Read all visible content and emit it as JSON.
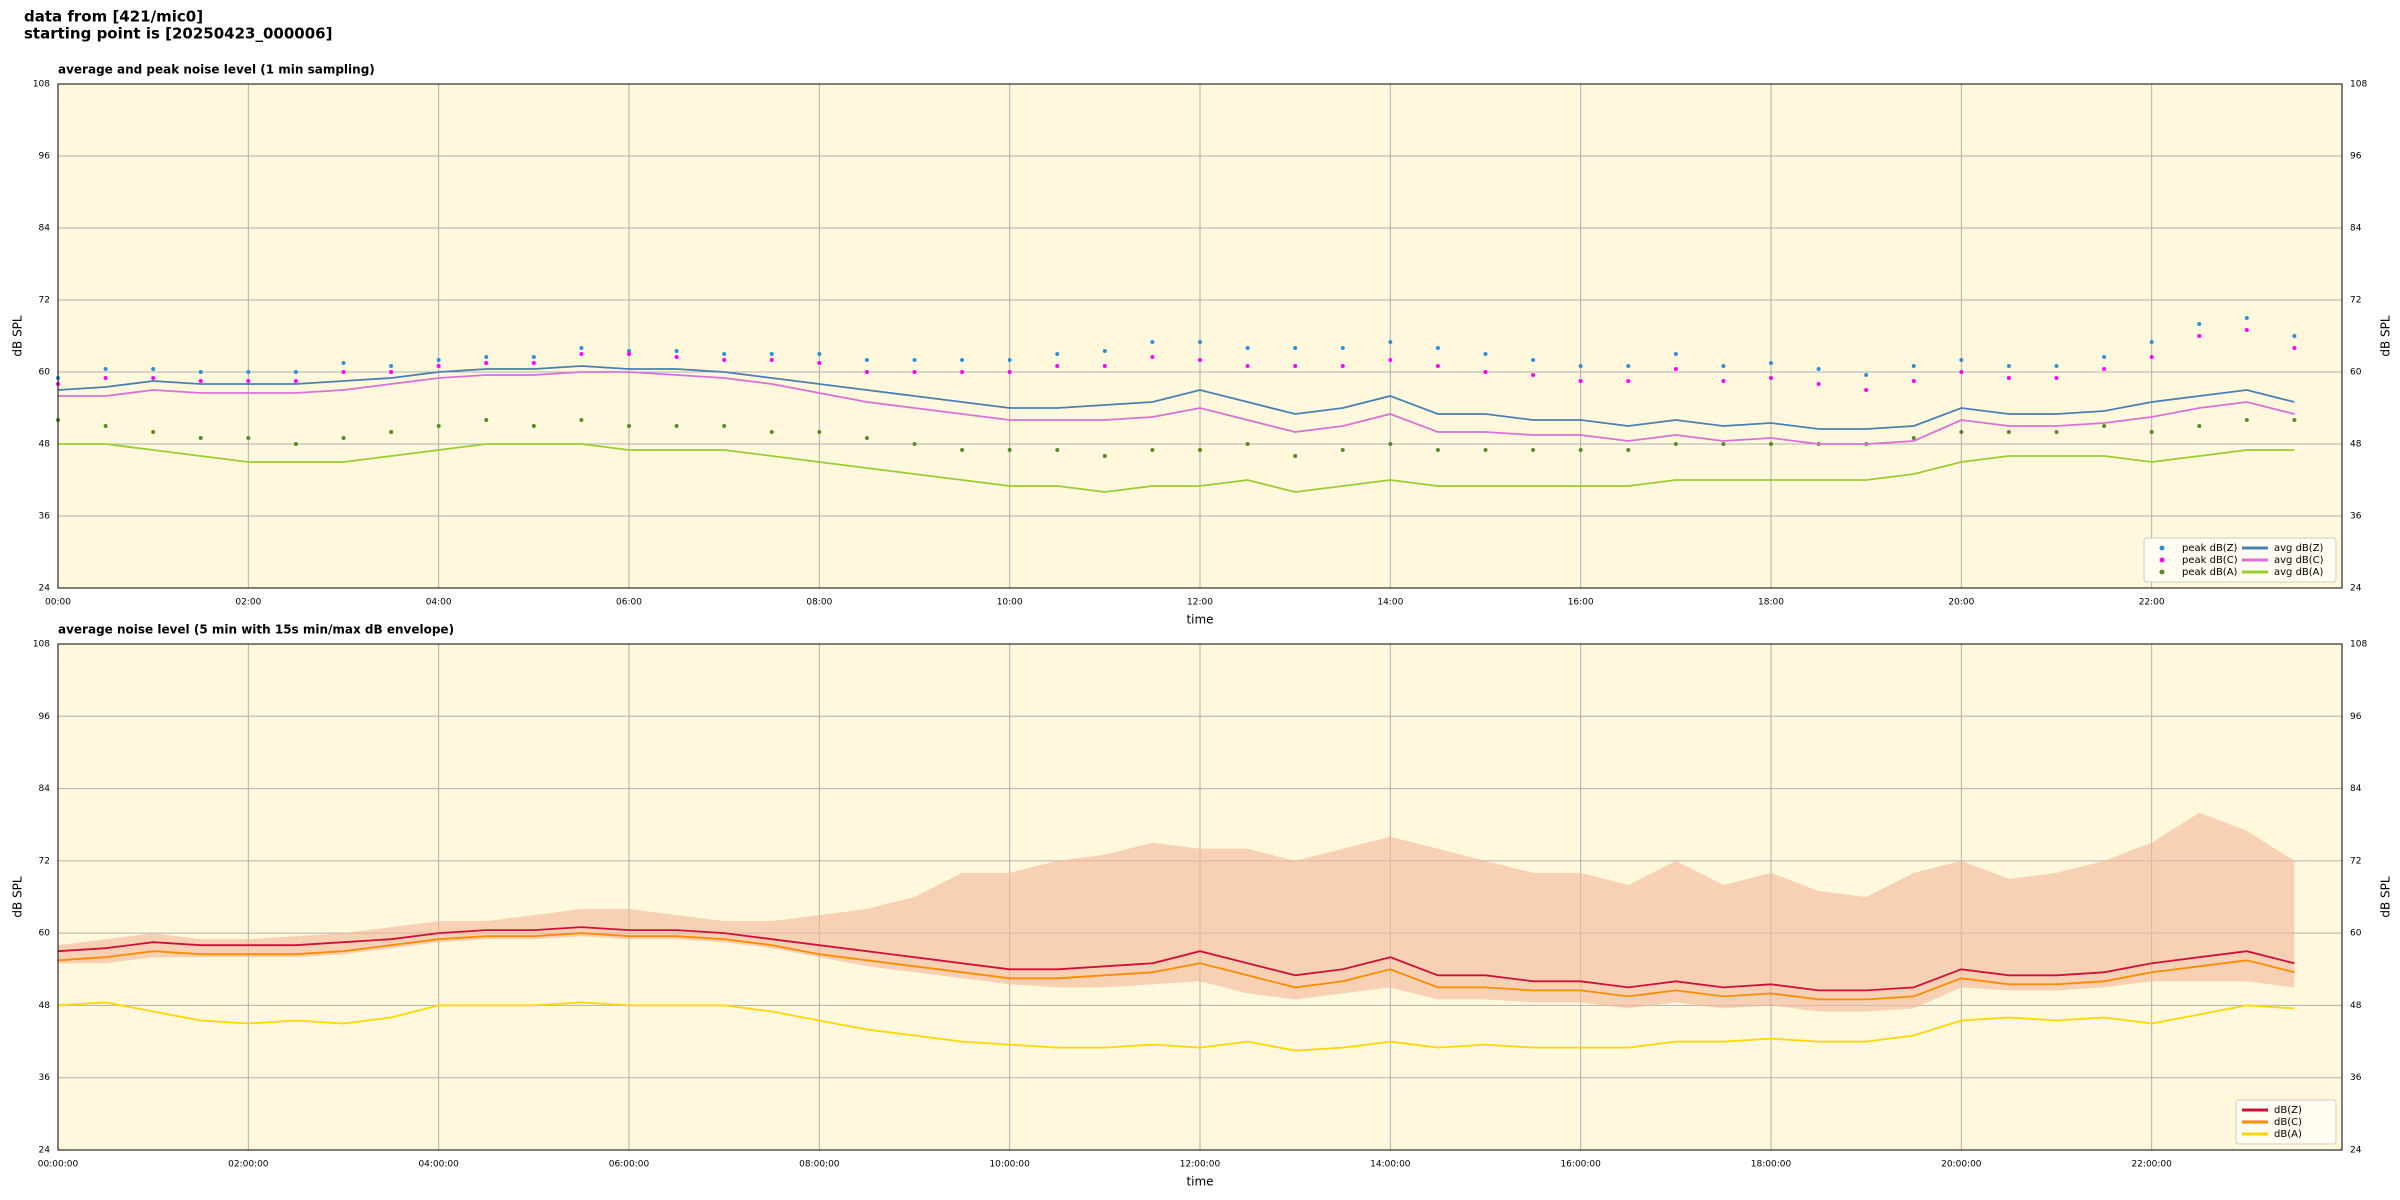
{
  "header": {
    "lines": [
      "data from [421/mic0]",
      "starting point is [20250423_000006]"
    ]
  },
  "chart_data": [
    {
      "type": "line",
      "title": "average and peak noise level (1 min sampling)",
      "xlabel": "time",
      "ylabel": "dB SPL",
      "background": "#fff8dc",
      "grid": true,
      "legend": "lower right",
      "legend_columns": 2,
      "x": [
        0,
        30,
        60,
        90,
        120,
        150,
        180,
        210,
        240,
        270,
        300,
        330,
        360,
        390,
        420,
        450,
        480,
        510,
        540,
        570,
        600,
        630,
        660,
        690,
        720,
        750,
        780,
        810,
        840,
        870,
        900,
        930,
        960,
        990,
        1020,
        1050,
        1080,
        1110,
        1140,
        1170,
        1200,
        1230,
        1260,
        1290,
        1320,
        1350,
        1380,
        1410
      ],
      "xlim": [
        0,
        1440
      ],
      "xticks": [
        {
          "value": 0,
          "label": "00:00"
        },
        {
          "value": 120,
          "label": "02:00"
        },
        {
          "value": 240,
          "label": "04:00"
        },
        {
          "value": 360,
          "label": "06:00"
        },
        {
          "value": 480,
          "label": "08:00"
        },
        {
          "value": 600,
          "label": "10:00"
        },
        {
          "value": 720,
          "label": "12:00"
        },
        {
          "value": 840,
          "label": "14:00"
        },
        {
          "value": 960,
          "label": "16:00"
        },
        {
          "value": 1080,
          "label": "18:00"
        },
        {
          "value": 1200,
          "label": "20:00"
        },
        {
          "value": 1320,
          "label": "22:00"
        }
      ],
      "ylim": [
        24,
        108
      ],
      "yticks": [
        24,
        36,
        48,
        60,
        72,
        84,
        96,
        108
      ],
      "series": [
        {
          "name": "peak dB(Z)",
          "style": "markers",
          "color": "#2f8fd8",
          "values": [
            59,
            60.5,
            60.5,
            60,
            60,
            60,
            61.5,
            61,
            62,
            62.5,
            62.5,
            64,
            63.5,
            63.5,
            63,
            63,
            63,
            62,
            62,
            62,
            62,
            63,
            63.5,
            65,
            65,
            64,
            64,
            64,
            65,
            64,
            63,
            62,
            61,
            61,
            63,
            61,
            61.5,
            60.5,
            59.5,
            61,
            62,
            61,
            61,
            62.5,
            65,
            68,
            69,
            66
          ]
        },
        {
          "name": "peak dB(C)",
          "style": "markers",
          "color": "#ff00ff",
          "values": [
            58,
            59,
            59,
            58.5,
            58.5,
            58.5,
            60,
            60,
            61,
            61.5,
            61.5,
            63,
            63,
            62.5,
            62,
            62,
            61.5,
            60,
            60,
            60,
            60,
            61,
            61,
            62.5,
            62,
            61,
            61,
            61,
            62,
            61,
            60,
            59.5,
            58.5,
            58.5,
            60.5,
            58.5,
            59,
            58,
            57,
            58.5,
            60,
            59,
            59,
            60.5,
            62.5,
            66,
            67,
            64
          ]
        },
        {
          "name": "peak dB(A)",
          "style": "markers",
          "color": "#5a8a28",
          "values": [
            52,
            51,
            50,
            49,
            49,
            48,
            49,
            50,
            51,
            52,
            51,
            52,
            51,
            51,
            51,
            50,
            50,
            49,
            48,
            47,
            47,
            47,
            46,
            47,
            47,
            48,
            46,
            47,
            48,
            47,
            47,
            47,
            47,
            47,
            48,
            48,
            48,
            48,
            48,
            49,
            50,
            50,
            50,
            51,
            50,
            51,
            52,
            52
          ]
        },
        {
          "name": "avg dB(Z)",
          "style": "line",
          "color": "#4a7fb5",
          "values": [
            57,
            57.5,
            58.5,
            58,
            58,
            58,
            58.5,
            59,
            60,
            60.5,
            60.5,
            61,
            60.5,
            60.5,
            60,
            59,
            58,
            57,
            56,
            55,
            54,
            54,
            54.5,
            55,
            57,
            55,
            53,
            54,
            56,
            53,
            53,
            52,
            52,
            51,
            52,
            51,
            51.5,
            50.5,
            50.5,
            51,
            54,
            53,
            53,
            53.5,
            55,
            56,
            57,
            55
          ]
        },
        {
          "name": "avg dB(C)",
          "style": "line",
          "color": "#da70d6",
          "values": [
            56,
            56,
            57,
            56.5,
            56.5,
            56.5,
            57,
            58,
            59,
            59.5,
            59.5,
            60,
            60,
            59.5,
            59,
            58,
            56.5,
            55,
            54,
            53,
            52,
            52,
            52,
            52.5,
            54,
            52,
            50,
            51,
            53,
            50,
            50,
            49.5,
            49.5,
            48.5,
            49.5,
            48.5,
            49,
            48,
            48,
            48.5,
            52,
            51,
            51,
            51.5,
            52.5,
            54,
            55,
            53
          ]
        },
        {
          "name": "avg dB(A)",
          "style": "line",
          "color": "#9acd32",
          "values": [
            48,
            48,
            47,
            46,
            45,
            45,
            45,
            46,
            47,
            48,
            48,
            48,
            47,
            47,
            47,
            46,
            45,
            44,
            43,
            42,
            41,
            41,
            40,
            41,
            41,
            42,
            40,
            41,
            42,
            41,
            41,
            41,
            41,
            41,
            42,
            42,
            42,
            42,
            42,
            43,
            45,
            46,
            46,
            46,
            45,
            46,
            47,
            47
          ]
        }
      ]
    },
    {
      "type": "line",
      "title": "average noise level (5 min with 15s min/max dB envelope)",
      "xlabel": "time",
      "ylabel": "dB SPL",
      "background": "#fff8dc",
      "grid": true,
      "legend": "lower right",
      "legend_columns": 1,
      "x": [
        0,
        30,
        60,
        90,
        120,
        150,
        180,
        210,
        240,
        270,
        300,
        330,
        360,
        390,
        420,
        450,
        480,
        510,
        540,
        570,
        600,
        630,
        660,
        690,
        720,
        750,
        780,
        810,
        840,
        870,
        900,
        930,
        960,
        990,
        1020,
        1050,
        1080,
        1110,
        1140,
        1170,
        1200,
        1230,
        1260,
        1290,
        1320,
        1350,
        1380,
        1410
      ],
      "xlim": [
        0,
        1440
      ],
      "xticks": [
        {
          "value": 0,
          "label": "00:00:00"
        },
        {
          "value": 120,
          "label": "02:00:00"
        },
        {
          "value": 240,
          "label": "04:00:00"
        },
        {
          "value": 360,
          "label": "06:00:00"
        },
        {
          "value": 480,
          "label": "08:00:00"
        },
        {
          "value": 600,
          "label": "10:00:00"
        },
        {
          "value": 720,
          "label": "12:00:00"
        },
        {
          "value": 840,
          "label": "14:00:00"
        },
        {
          "value": 960,
          "label": "16:00:00"
        },
        {
          "value": 1080,
          "label": "18:00:00"
        },
        {
          "value": 1200,
          "label": "20:00:00"
        },
        {
          "value": 1320,
          "label": "22:00:00"
        }
      ],
      "ylim": [
        24,
        108
      ],
      "yticks": [
        24,
        36,
        48,
        60,
        72,
        84,
        96,
        108
      ],
      "envelope": {
        "color": "#f4b79a",
        "max": [
          58,
          59,
          60,
          59,
          59,
          59.5,
          60,
          61,
          62,
          62,
          63,
          64,
          64,
          63,
          62,
          62,
          63,
          64,
          66,
          70,
          70,
          72,
          73,
          75,
          74,
          74,
          72,
          74,
          76,
          74,
          72,
          70,
          70,
          68,
          72,
          68,
          70,
          67,
          66,
          70,
          72,
          69,
          70,
          72,
          75,
          80,
          77,
          72
        ],
        "min": [
          55,
          55,
          56,
          56,
          56,
          56,
          56.5,
          57.5,
          58.5,
          59,
          59,
          59.5,
          59,
          59,
          58.5,
          57.5,
          56,
          54.5,
          53.5,
          52.5,
          51.5,
          51,
          51,
          51.5,
          52,
          50,
          49,
          50,
          51,
          49,
          49,
          48.5,
          48.5,
          47.5,
          48.5,
          47.5,
          48,
          47,
          47,
          47.5,
          51,
          50.5,
          50.5,
          51,
          52,
          52,
          52,
          51
        ]
      },
      "series": [
        {
          "name": "dB(Z)",
          "style": "line",
          "color": "#d0103a",
          "values": [
            57,
            57.5,
            58.5,
            58,
            58,
            58,
            58.5,
            59,
            60,
            60.5,
            60.5,
            61,
            60.5,
            60.5,
            60,
            59,
            58,
            57,
            56,
            55,
            54,
            54,
            54.5,
            55,
            57,
            55,
            53,
            54,
            56,
            53,
            53,
            52,
            52,
            51,
            52,
            51,
            51.5,
            50.5,
            50.5,
            51,
            54,
            53,
            53,
            53.5,
            55,
            56,
            57,
            55
          ]
        },
        {
          "name": "dB(C)",
          "style": "line",
          "color": "#ff8c00",
          "values": [
            55.5,
            56,
            57,
            56.5,
            56.5,
            56.5,
            57,
            58,
            59,
            59.5,
            59.5,
            60,
            59.5,
            59.5,
            59,
            58,
            56.5,
            55.5,
            54.5,
            53.5,
            52.5,
            52.5,
            53,
            53.5,
            55,
            53,
            51,
            52,
            54,
            51,
            51,
            50.5,
            50.5,
            49.5,
            50.5,
            49.5,
            50,
            49,
            49,
            49.5,
            52.5,
            51.5,
            51.5,
            52,
            53.5,
            54.5,
            55.5,
            53.5
          ]
        },
        {
          "name": "dB(A)",
          "style": "line",
          "color": "#ffd700",
          "values": [
            48,
            48.5,
            47,
            45.5,
            45,
            45.5,
            45,
            46,
            48,
            48,
            48,
            48.5,
            48,
            48,
            48,
            47,
            45.5,
            44,
            43,
            42,
            41.5,
            41,
            41,
            41.5,
            41,
            42,
            40.5,
            41,
            42,
            41,
            41.5,
            41,
            41,
            41,
            42,
            42,
            42.5,
            42,
            42,
            43,
            45.5,
            46,
            45.5,
            46,
            45,
            46.5,
            48,
            47.5
          ]
        }
      ]
    }
  ]
}
